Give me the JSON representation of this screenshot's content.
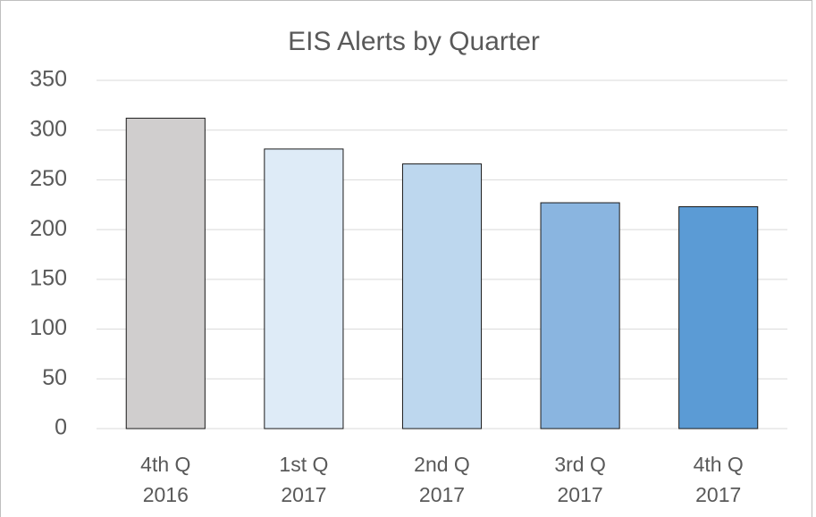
{
  "chart_data": {
    "type": "bar",
    "title": "EIS Alerts by Quarter",
    "categories": [
      "4th Q\n2016",
      "1st Q\n2017",
      "2nd Q\n2017",
      "3rd Q\n2017",
      "4th Q\n2017"
    ],
    "values": [
      312,
      281,
      266,
      227,
      223
    ],
    "colors": [
      "#d0cece",
      "#deebf7",
      "#bdd7ee",
      "#8ab5e0",
      "#5b9bd5"
    ],
    "ylim": [
      0,
      350
    ],
    "yticks": [
      0,
      50,
      100,
      150,
      200,
      250,
      300,
      350
    ],
    "grid": true
  }
}
